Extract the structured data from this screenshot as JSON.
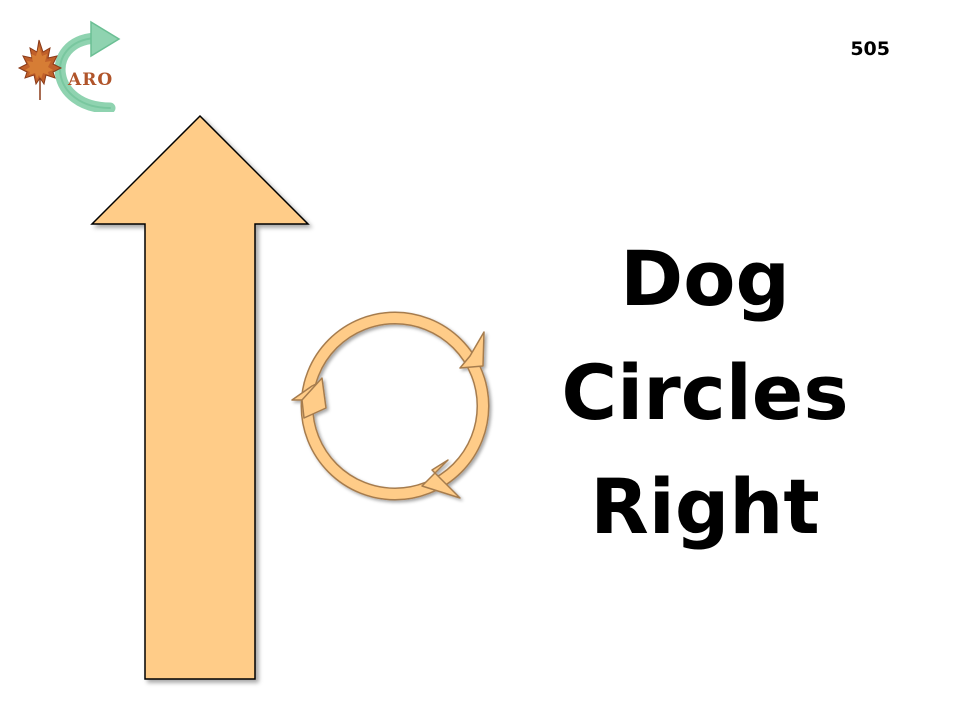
{
  "logo": {
    "text": "ARO",
    "icons": [
      "maple-leaf-icon",
      "curved-arrow-icon"
    ]
  },
  "sign_number": "505",
  "title_lines": [
    "Dog",
    "Circles",
    "Right"
  ],
  "graphics": {
    "main_arrow_icon": "up-arrow-icon",
    "circle_icon": "clockwise-circle-arrows-icon"
  },
  "colors": {
    "arrow_fill": "#ffcc88",
    "arrow_stroke": "#000000",
    "circle_fill": "#ffcc88",
    "circle_stroke": "#a67c4e",
    "logo_green": "#7cc9a2",
    "logo_leaf": "#b0542a",
    "text": "#000000"
  }
}
